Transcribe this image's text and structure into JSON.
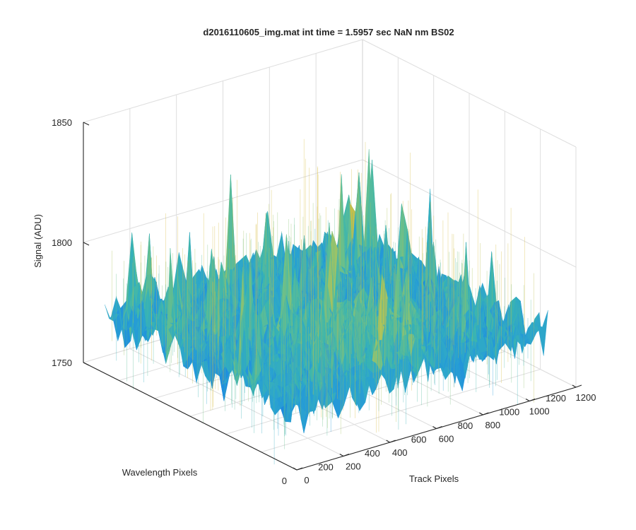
{
  "chart_data": {
    "type": "surface",
    "title": "d2016110605_img.mat int time = 1.5957 sec  NaN nm BS02",
    "xlabel": "Track Pixels",
    "ylabel": "Wavelength Pixels",
    "zlabel": "Signal (ADU)",
    "xlim": [
      0,
      1200
    ],
    "ylim": [
      0,
      1200
    ],
    "zlim": [
      1750,
      1850
    ],
    "xticks": [
      "0",
      "200",
      "400",
      "600",
      "800",
      "1000",
      "1200"
    ],
    "yticks": [
      "0",
      "200",
      "400",
      "600",
      "800",
      "1000",
      "1200"
    ],
    "zticks": [
      "1750",
      "1800",
      "1850"
    ],
    "grid": true,
    "colormap": "parula",
    "colormap_stops": [
      "#0a6ed8",
      "#1f8fde",
      "#2aa3d0",
      "#3ab5b0",
      "#6cc08a",
      "#a9c45d",
      "#d7bb3f"
    ],
    "surface": {
      "x_range": [
        0,
        1080
      ],
      "y_range": [
        0,
        1080
      ],
      "mean_signal": 1775,
      "signal_range": [
        1745,
        1830
      ]
    }
  }
}
